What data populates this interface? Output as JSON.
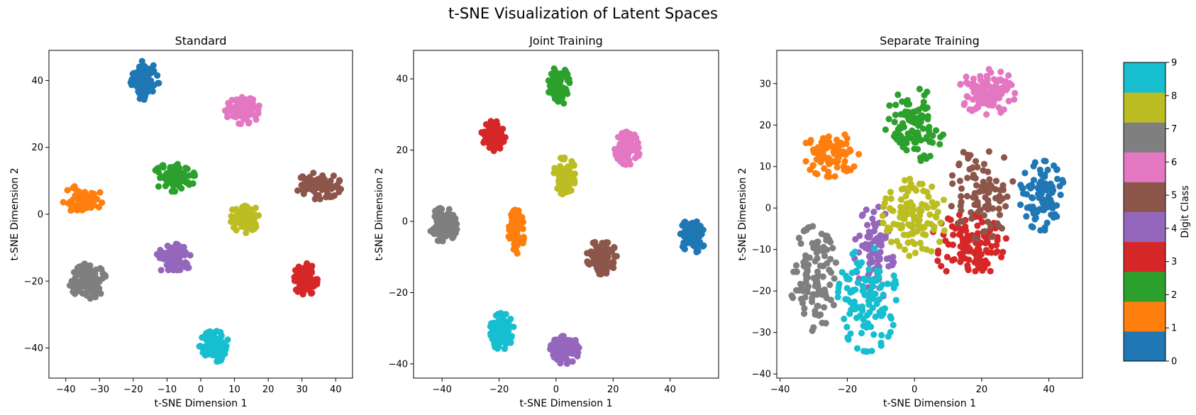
{
  "figure": {
    "title": "t-SNE Visualization of Latent Spaces"
  },
  "colorbar": {
    "label": "Digit Class",
    "ticks": [
      "0",
      "1",
      "2",
      "3",
      "4",
      "5",
      "6",
      "7",
      "8",
      "9"
    ],
    "colors": [
      "#1f77b4",
      "#ff7f0e",
      "#2ca02c",
      "#d62728",
      "#9467bd",
      "#8c564b",
      "#e377c2",
      "#7f7f7f",
      "#bcbd22",
      "#17becf"
    ]
  },
  "chart_data": [
    {
      "type": "scatter",
      "title": "Standard",
      "xlabel": "t-SNE Dimension 1",
      "ylabel": "t-SNE Dimension 2",
      "xlim": [
        -45,
        45
      ],
      "ylim": [
        -49,
        49
      ],
      "xticks": [
        -40,
        -30,
        -20,
        -10,
        0,
        10,
        20,
        30,
        40
      ],
      "yticks": [
        -40,
        -20,
        0,
        20,
        40
      ],
      "clusters": [
        {
          "class": 0,
          "cx": -17,
          "cy": 40,
          "sx": 2.2,
          "sy": 2.8,
          "n": 90
        },
        {
          "class": 1,
          "cx": -35,
          "cy": 4.5,
          "sx": 2.8,
          "sy": 2.0,
          "n": 55
        },
        {
          "class": 2,
          "cx": -8,
          "cy": 11,
          "sx": 3.0,
          "sy": 2.0,
          "n": 90
        },
        {
          "class": 3,
          "cx": 31,
          "cy": -19.5,
          "sx": 1.7,
          "sy": 2.3,
          "n": 85
        },
        {
          "class": 4,
          "cx": -8,
          "cy": -13.5,
          "sx": 2.5,
          "sy": 2.2,
          "n": 85
        },
        {
          "class": 5,
          "cx": 35,
          "cy": 8.5,
          "sx": 3.2,
          "sy": 1.9,
          "n": 95
        },
        {
          "class": 6,
          "cx": 12.5,
          "cy": 31,
          "sx": 2.5,
          "sy": 1.9,
          "n": 90
        },
        {
          "class": 7,
          "cx": -33.5,
          "cy": -20,
          "sx": 2.6,
          "sy": 2.5,
          "n": 95
        },
        {
          "class": 8,
          "cx": 13,
          "cy": -1,
          "sx": 2.0,
          "sy": 2.2,
          "n": 90
        },
        {
          "class": 9,
          "cx": 4,
          "cy": -39.5,
          "sx": 2.1,
          "sy": 2.2,
          "n": 95
        }
      ]
    },
    {
      "type": "scatter",
      "title": "Joint Training",
      "xlabel": "t-SNE Dimension 1",
      "ylabel": "t-SNE Dimension 2",
      "xlim": [
        -50,
        57
      ],
      "ylim": [
        -44,
        48
      ],
      "xticks": [
        -40,
        -20,
        0,
        20,
        40
      ],
      "yticks": [
        -40,
        -20,
        0,
        20,
        40
      ],
      "clusters": [
        {
          "class": 0,
          "cx": 48,
          "cy": -4,
          "sx": 2.2,
          "sy": 2.3,
          "n": 90
        },
        {
          "class": 1,
          "cx": -14,
          "cy": -3,
          "sx": 1.3,
          "sy": 3.0,
          "n": 60
        },
        {
          "class": 2,
          "cx": 1,
          "cy": 38,
          "sx": 1.8,
          "sy": 2.6,
          "n": 95
        },
        {
          "class": 3,
          "cx": -22,
          "cy": 24,
          "sx": 2.0,
          "sy": 2.0,
          "n": 95
        },
        {
          "class": 4,
          "cx": 3,
          "cy": -36,
          "sx": 2.4,
          "sy": 1.9,
          "n": 95
        },
        {
          "class": 5,
          "cx": 16,
          "cy": -10,
          "sx": 2.5,
          "sy": 2.3,
          "n": 95
        },
        {
          "class": 6,
          "cx": 25,
          "cy": 20.5,
          "sx": 2.1,
          "sy": 2.2,
          "n": 90
        },
        {
          "class": 7,
          "cx": -39.5,
          "cy": -1,
          "sx": 2.3,
          "sy": 2.3,
          "n": 95
        },
        {
          "class": 8,
          "cx": 3,
          "cy": 13,
          "sx": 1.8,
          "sy": 2.6,
          "n": 85
        },
        {
          "class": 9,
          "cx": -19,
          "cy": -31,
          "sx": 2.0,
          "sy": 2.5,
          "n": 95
        }
      ]
    },
    {
      "type": "scatter",
      "title": "Separate Training",
      "xlabel": "t-SNE Dimension 1",
      "ylabel": "t-SNE Dimension 2",
      "xlim": [
        -41,
        50
      ],
      "ylim": [
        -41,
        38
      ],
      "xticks": [
        -40,
        -20,
        0,
        20,
        40
      ],
      "yticks": [
        -40,
        -30,
        -20,
        -10,
        0,
        10,
        20,
        30
      ],
      "clusters": [
        {
          "class": 0,
          "cx": 38,
          "cy": 3,
          "sx": 3.2,
          "sy": 4.0,
          "n": 100
        },
        {
          "class": 1,
          "cx": -25,
          "cy": 13,
          "sx": 4.0,
          "sy": 2.6,
          "n": 95
        },
        {
          "class": 2,
          "cx": 0,
          "cy": 20,
          "sx": 4.2,
          "sy": 4.2,
          "n": 100
        },
        {
          "class": 3,
          "cx": 16,
          "cy": -9,
          "sx": 5.5,
          "sy": 3.6,
          "n": 110
        },
        {
          "class": 4,
          "cx": -12,
          "cy": -11,
          "sx": 2.8,
          "sy": 5.5,
          "n": 80
        },
        {
          "class": 5,
          "cx": 20,
          "cy": 4,
          "sx": 4.5,
          "sy": 5.5,
          "n": 90
        },
        {
          "class": 6,
          "cx": 22,
          "cy": 28,
          "sx": 4.2,
          "sy": 2.6,
          "n": 100
        },
        {
          "class": 7,
          "cx": -30,
          "cy": -17,
          "sx": 3.3,
          "sy": 6.0,
          "n": 110
        },
        {
          "class": 8,
          "cx": 0,
          "cy": -2,
          "sx": 4.5,
          "sy": 4.8,
          "n": 110
        },
        {
          "class": 9,
          "cx": -14,
          "cy": -22,
          "sx": 4.2,
          "sy": 6.0,
          "n": 110
        }
      ]
    }
  ]
}
